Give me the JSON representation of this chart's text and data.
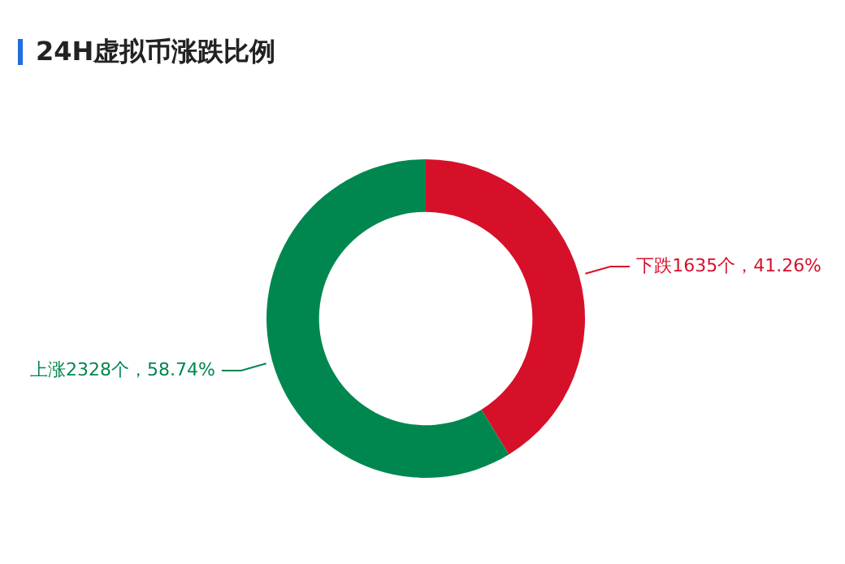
{
  "chart_data": {
    "type": "donut",
    "title": "24H虚拟币涨跌比例",
    "categories": [
      "下跌",
      "上涨"
    ],
    "values": [
      1635,
      2328
    ],
    "colors": [
      "#d7102a",
      "#00874f"
    ],
    "value_labels": [
      "1635个，41.26%",
      "2328个，58.74%"
    ],
    "legend": false
  }
}
